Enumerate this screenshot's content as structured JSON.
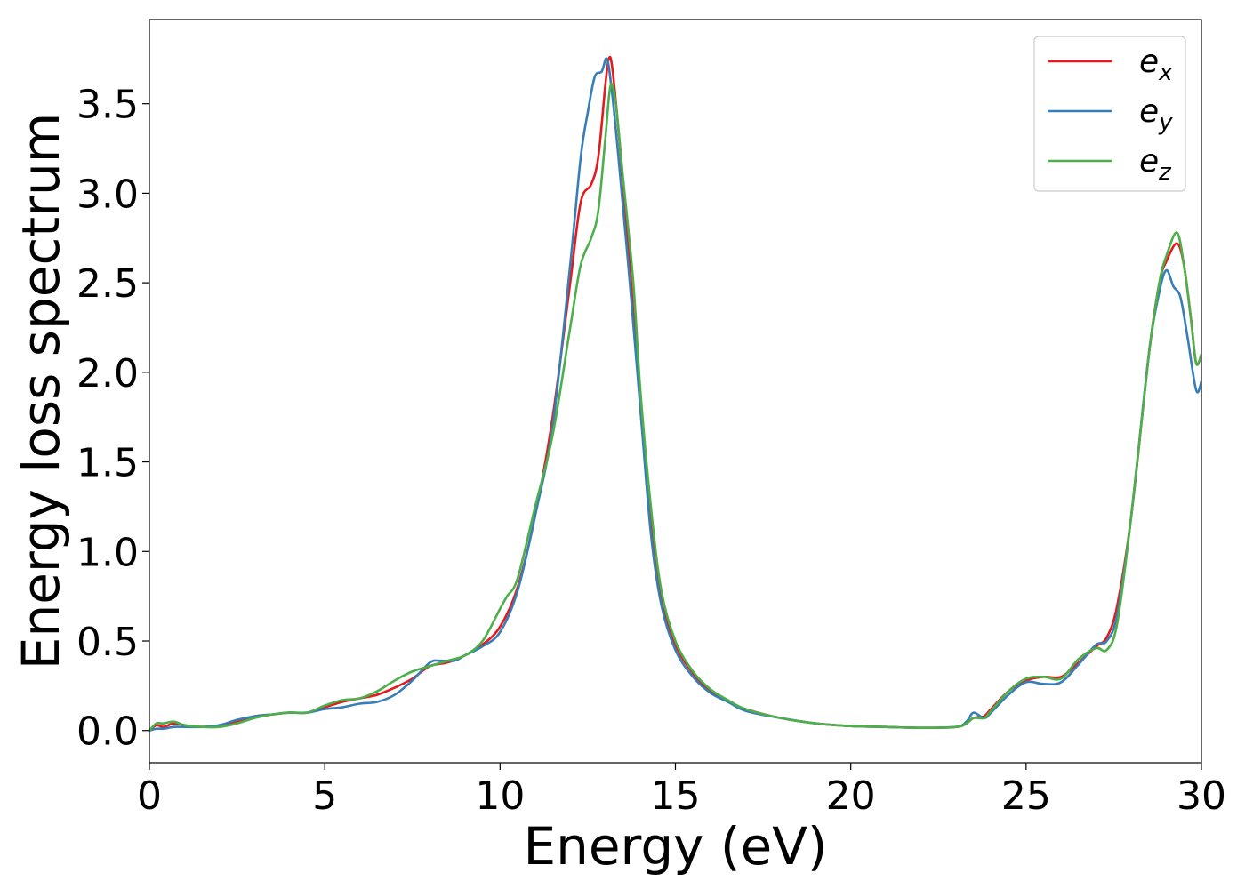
{
  "chart_data": {
    "type": "line",
    "title": "",
    "xlabel": "Energy (eV)",
    "ylabel": "Energy loss spectrum",
    "xlim": [
      0,
      30
    ],
    "ylim": [
      -0.18,
      3.97
    ],
    "xticks": [
      0,
      5,
      10,
      15,
      20,
      25,
      30
    ],
    "xtick_labels": [
      "0",
      "5",
      "10",
      "15",
      "20",
      "25",
      "30"
    ],
    "yticks": [
      0.0,
      0.5,
      1.0,
      1.5,
      2.0,
      2.5,
      3.0,
      3.5
    ],
    "ytick_labels": [
      "0.0",
      "0.5",
      "1.0",
      "1.5",
      "2.0",
      "2.5",
      "3.0",
      "3.5"
    ],
    "grid": false,
    "legend_position": "top-right",
    "series": [
      {
        "name": "e",
        "subscript": "x",
        "color": "#e41a1c",
        "x": [
          0,
          0.2,
          0.4,
          0.7,
          1.0,
          1.5,
          2.0,
          2.5,
          3.0,
          3.5,
          4.0,
          4.5,
          5.0,
          5.5,
          6.0,
          6.5,
          7.0,
          7.5,
          8.0,
          8.5,
          9.0,
          9.5,
          10.0,
          10.5,
          11.0,
          11.5,
          12.0,
          12.3,
          12.6,
          12.8,
          13.0,
          13.1,
          13.2,
          13.4,
          13.7,
          14.0,
          14.3,
          14.6,
          15.0,
          15.5,
          16.0,
          16.5,
          17.0,
          18.0,
          19.0,
          20.0,
          21.0,
          22.0,
          23.0,
          23.3,
          23.5,
          23.8,
          24.0,
          24.5,
          25.0,
          25.5,
          26.0,
          26.5,
          27.0,
          27.3,
          27.6,
          28.0,
          28.5,
          28.8,
          29.0,
          29.3,
          29.5,
          29.7,
          29.85,
          30.0
        ],
        "y": [
          0.0,
          0.03,
          0.02,
          0.04,
          0.03,
          0.02,
          0.03,
          0.05,
          0.08,
          0.09,
          0.1,
          0.1,
          0.13,
          0.16,
          0.18,
          0.2,
          0.24,
          0.29,
          0.36,
          0.38,
          0.42,
          0.48,
          0.58,
          0.8,
          1.2,
          1.75,
          2.5,
          2.95,
          3.05,
          3.2,
          3.6,
          3.75,
          3.7,
          3.3,
          2.6,
          1.8,
          1.2,
          0.75,
          0.48,
          0.32,
          0.22,
          0.16,
          0.12,
          0.07,
          0.04,
          0.025,
          0.02,
          0.015,
          0.02,
          0.04,
          0.07,
          0.08,
          0.12,
          0.22,
          0.28,
          0.3,
          0.3,
          0.38,
          0.47,
          0.52,
          0.7,
          1.2,
          2.1,
          2.5,
          2.62,
          2.72,
          2.6,
          2.3,
          2.05,
          2.1
        ]
      },
      {
        "name": "e",
        "subscript": "y",
        "color": "#377eb8",
        "x": [
          0,
          0.2,
          0.4,
          0.7,
          1.0,
          1.5,
          2.0,
          2.5,
          3.0,
          3.5,
          4.0,
          4.5,
          5.0,
          5.5,
          6.0,
          6.5,
          7.0,
          7.5,
          8.0,
          8.3,
          8.7,
          9.0,
          9.5,
          10.0,
          10.5,
          11.0,
          11.5,
          12.0,
          12.3,
          12.5,
          12.7,
          12.9,
          13.05,
          13.2,
          13.4,
          13.7,
          14.0,
          14.3,
          14.6,
          15.0,
          15.5,
          16.0,
          16.5,
          17.0,
          18.0,
          19.0,
          20.0,
          21.0,
          22.0,
          23.0,
          23.3,
          23.5,
          23.8,
          24.0,
          24.5,
          25.0,
          25.5,
          26.0,
          26.5,
          27.0,
          27.3,
          27.6,
          28.0,
          28.5,
          28.8,
          29.0,
          29.2,
          29.4,
          29.6,
          29.85,
          30.0
        ],
        "y": [
          0.0,
          0.01,
          0.01,
          0.02,
          0.02,
          0.02,
          0.03,
          0.06,
          0.08,
          0.09,
          0.1,
          0.1,
          0.12,
          0.13,
          0.15,
          0.16,
          0.2,
          0.28,
          0.38,
          0.39,
          0.39,
          0.42,
          0.47,
          0.55,
          0.78,
          1.2,
          1.7,
          2.6,
          3.2,
          3.45,
          3.65,
          3.68,
          3.75,
          3.55,
          3.15,
          2.5,
          1.8,
          1.1,
          0.7,
          0.45,
          0.3,
          0.21,
          0.16,
          0.11,
          0.07,
          0.04,
          0.025,
          0.02,
          0.015,
          0.02,
          0.05,
          0.1,
          0.07,
          0.1,
          0.2,
          0.27,
          0.26,
          0.27,
          0.37,
          0.48,
          0.5,
          0.65,
          1.2,
          2.1,
          2.45,
          2.57,
          2.48,
          2.42,
          2.2,
          1.9,
          1.95
        ]
      },
      {
        "name": "e",
        "subscript": "z",
        "color": "#4daf4a",
        "x": [
          0,
          0.2,
          0.4,
          0.7,
          1.0,
          1.5,
          2.0,
          2.5,
          3.0,
          3.5,
          4.0,
          4.5,
          5.0,
          5.5,
          6.0,
          6.5,
          7.0,
          7.5,
          8.0,
          8.5,
          9.0,
          9.5,
          10.0,
          10.2,
          10.5,
          11.0,
          11.5,
          12.0,
          12.3,
          12.6,
          12.8,
          13.0,
          13.15,
          13.3,
          13.5,
          13.8,
          14.0,
          14.3,
          14.6,
          15.0,
          15.5,
          16.0,
          16.5,
          17.0,
          18.0,
          19.0,
          20.0,
          21.0,
          22.0,
          23.0,
          23.3,
          23.5,
          23.8,
          24.0,
          24.5,
          25.0,
          25.5,
          26.0,
          26.5,
          27.0,
          27.3,
          27.6,
          28.0,
          28.5,
          28.8,
          29.0,
          29.3,
          29.5,
          29.7,
          29.85,
          30.0
        ],
        "y": [
          0.0,
          0.04,
          0.04,
          0.05,
          0.03,
          0.02,
          0.02,
          0.04,
          0.07,
          0.09,
          0.1,
          0.1,
          0.14,
          0.17,
          0.18,
          0.22,
          0.28,
          0.33,
          0.36,
          0.39,
          0.42,
          0.5,
          0.68,
          0.75,
          0.85,
          1.25,
          1.65,
          2.25,
          2.6,
          2.75,
          2.9,
          3.3,
          3.6,
          3.5,
          3.1,
          2.5,
          1.9,
          1.25,
          0.78,
          0.5,
          0.33,
          0.23,
          0.17,
          0.12,
          0.07,
          0.04,
          0.025,
          0.02,
          0.015,
          0.02,
          0.04,
          0.07,
          0.07,
          0.11,
          0.22,
          0.29,
          0.3,
          0.29,
          0.4,
          0.46,
          0.45,
          0.6,
          1.2,
          2.1,
          2.5,
          2.65,
          2.78,
          2.6,
          2.3,
          2.05,
          2.1
        ]
      }
    ]
  }
}
